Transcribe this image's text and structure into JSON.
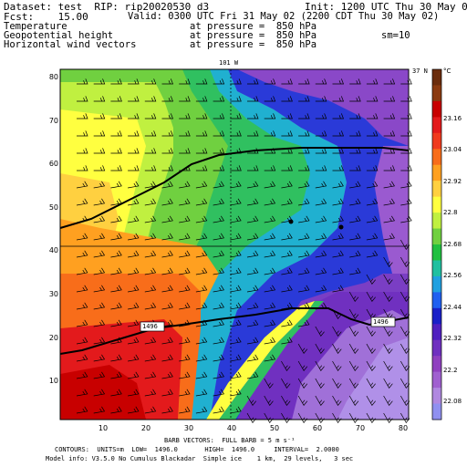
{
  "header": {
    "dataset": "Dataset: test  RIP: rip20020530 d3",
    "init": "Init: 1200 UTC Thu 30 May 02",
    "fcst": "Fcst:    15.00",
    "valid": "Valid: 0300 UTC Fri 31 May 02 (2200 CDT Thu 30 May 02)",
    "field1_name": "Temperature",
    "field1_level": "at pressure =  850 hPa",
    "field2_name": "Geopotential height",
    "field2_level": "at pressure =  850 hPa",
    "field2_extra": "sm=10",
    "field3_name": "Horizontal wind vectors",
    "field3_level": "at pressure =  850 hPa"
  },
  "map": {
    "longitude_label": "101 W",
    "latitude_label": "37 N",
    "x_ticks": [
      "10",
      "20",
      "30",
      "40",
      "50",
      "60",
      "70",
      "80"
    ],
    "y_ticks": [
      "10",
      "20",
      "30",
      "40",
      "50",
      "60",
      "70",
      "80"
    ],
    "contour_labels": [
      "1496",
      "1496"
    ]
  },
  "colorbar": {
    "unit": "°C",
    "labels": [
      "23.16",
      "23.04",
      "22.92",
      "22.8",
      "22.68",
      "22.56",
      "22.44",
      "22.32",
      "22.2",
      "22.08"
    ],
    "colors": [
      "#6b2c0c",
      "#8b3a10",
      "#c80000",
      "#e31a1c",
      "#f03a1e",
      "#f86d1a",
      "#ffa020",
      "#ffd040",
      "#ffff40",
      "#c0f040",
      "#70d040",
      "#20c040",
      "#20c0a0",
      "#20a0e0",
      "#2060f0",
      "#1a20c8",
      "#5020c0",
      "#7030c0",
      "#9040c0",
      "#a060d0",
      "#b088e0",
      "#9090f0"
    ]
  },
  "footer": {
    "barb": "BARB VECTORS:  FULL BARB = 5 m s⁻¹",
    "contours": "CONTOURS:  UNITS=m  LOW=  1496.0       HIGH=  1496.0     INTERVAL=  2.0000",
    "model": "Model info: V3.5.0 No Cumulus Blackadar  Simple ice    1 km,  29 levels,   3 sec"
  }
}
